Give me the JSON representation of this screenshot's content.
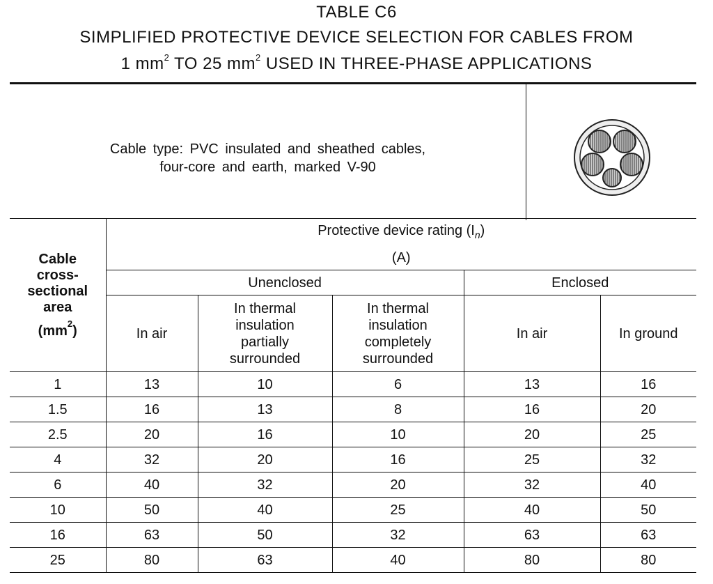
{
  "title": {
    "line1": "TABLE C6",
    "line2": "SIMPLIFIED PROTECTIVE DEVICE SELECTION FOR CABLES FROM",
    "line3": [
      "1 mm",
      "2",
      " TO 25 mm",
      "2",
      " USED IN THREE-PHASE APPLICATIONS"
    ]
  },
  "cable_type": [
    "Cable type: PVC insulated and sheathed cables,",
    "four-core and earth, marked V-90"
  ],
  "table": {
    "area_header": [
      "Cable",
      "cross-",
      "sectional",
      "area",
      "(mm",
      "2",
      ")"
    ],
    "rating_header": [
      "Protective device rating (I",
      "n",
      ")"
    ],
    "rating_unit": "(A)",
    "groups": [
      "Unenclosed",
      "Enclosed"
    ],
    "columns": [
      "In air",
      "In thermal insulation partially surrounded",
      "In thermal insulation completely surrounded",
      "In air",
      "In ground"
    ],
    "rows": [
      [
        1,
        13,
        10,
        6,
        13,
        16
      ],
      [
        1.5,
        16,
        13,
        8,
        16,
        20
      ],
      [
        2.5,
        20,
        16,
        10,
        20,
        25
      ],
      [
        4,
        32,
        20,
        16,
        25,
        32
      ],
      [
        6,
        40,
        32,
        20,
        32,
        40
      ],
      [
        10,
        50,
        40,
        25,
        40,
        50
      ],
      [
        16,
        63,
        50,
        32,
        63,
        63
      ],
      [
        25,
        80,
        63,
        40,
        80,
        80
      ]
    ]
  }
}
